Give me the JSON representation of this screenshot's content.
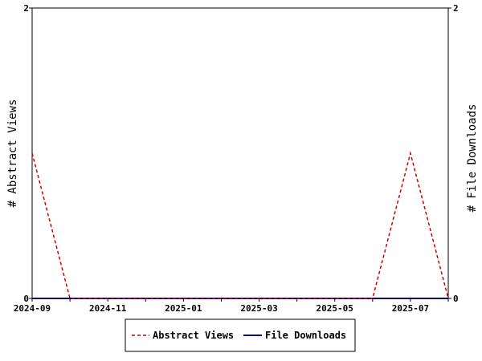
{
  "chart_data": {
    "type": "line",
    "x_axis": {
      "type": "date",
      "range": [
        "2024-09",
        "2025-08"
      ],
      "tick_labels": [
        "2024-09",
        "2024-11",
        "2025-01",
        "2025-03",
        "2025-05",
        "2025-07"
      ],
      "minor_ticks": [
        "2024-10",
        "2024-12",
        "2025-02",
        "2025-04",
        "2025-06",
        "2025-08"
      ]
    },
    "y_left": {
      "label": "# Abstract Views",
      "range": [
        0,
        2
      ],
      "tick_labels": [
        "0",
        "2"
      ]
    },
    "y_right": {
      "label": "# File Downloads",
      "range": [
        0,
        2
      ],
      "tick_labels": [
        "0",
        "2"
      ]
    },
    "x": [
      "2024-09",
      "2024-10",
      "2024-11",
      "2024-12",
      "2025-01",
      "2025-02",
      "2025-03",
      "2025-04",
      "2025-05",
      "2025-06",
      "2025-07",
      "2025-08"
    ],
    "series": [
      {
        "name": "Abstract Views",
        "axis": "left",
        "color": "#cc0000",
        "style": "dashed",
        "values": [
          1,
          0,
          0,
          0,
          0,
          0,
          0,
          0,
          0,
          0,
          1,
          0
        ]
      },
      {
        "name": "File Downloads",
        "axis": "right",
        "color": "#00008b",
        "style": "solid",
        "values": [
          0,
          0,
          0,
          0,
          0,
          0,
          0,
          0,
          0,
          0,
          0,
          0
        ]
      }
    ],
    "grid": false,
    "legend": "bottom"
  }
}
